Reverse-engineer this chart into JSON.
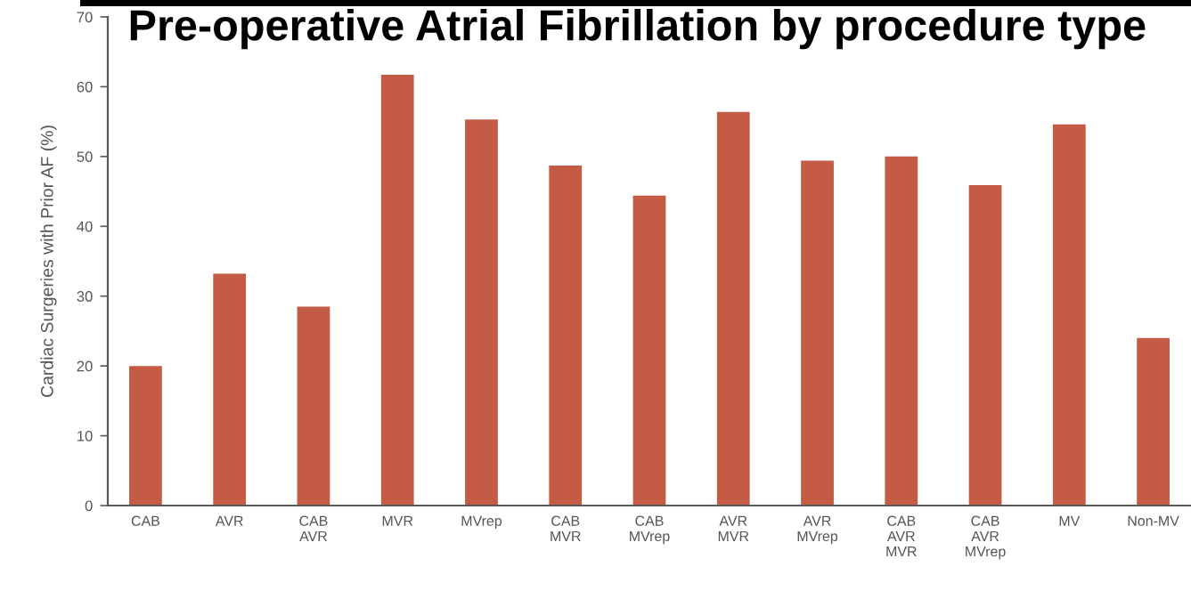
{
  "chart_data": {
    "type": "bar",
    "title": "Pre-operative Atrial Fibrillation by procedure type",
    "ylabel": "Cardiac Surgeries with Prior AF (%)",
    "categories": [
      "CAB",
      "AVR",
      "CAB\nAVR",
      "MVR",
      "MVrep",
      "CAB\nMVR",
      "CAB\nMVrep",
      "AVR\nMVR",
      "AVR\nMVrep",
      "CAB\nAVR\nMVR",
      "CAB\nAVR\nMVrep",
      "MV",
      "Non-MV"
    ],
    "values": [
      20.0,
      33.2,
      28.5,
      61.7,
      55.3,
      48.7,
      44.4,
      56.4,
      49.4,
      50.0,
      45.9,
      54.6,
      24.0
    ],
    "color": "#c45b45",
    "ylim": [
      0,
      70
    ],
    "yticks": [
      0,
      10,
      20,
      30,
      40,
      50,
      60,
      70
    ]
  }
}
